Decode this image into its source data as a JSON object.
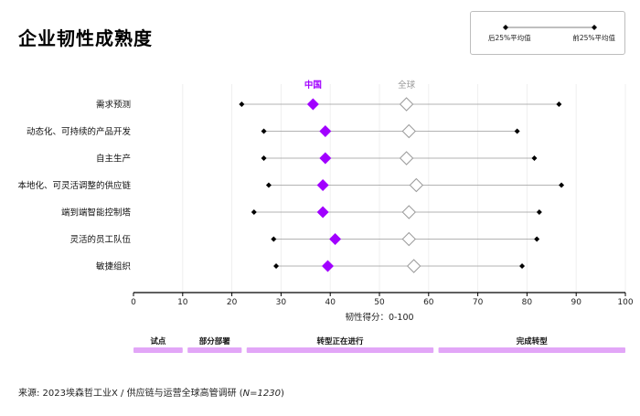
{
  "title": "企业韧性成熟度",
  "legend": {
    "left_label": "后25%平均值",
    "right_label": "前25%平均值"
  },
  "source": {
    "prefix": "来源: 2023埃森哲工业X / 供应链与运营全球高管调研 (",
    "n": "N=1230",
    "suffix": ")"
  },
  "colors": {
    "china": "#a100ff",
    "global": "#ffffff",
    "global_stroke": "#9a9a9a",
    "band": "#e2a6f7",
    "line": "#9a9a9a",
    "dot": "#000000"
  },
  "chart_data": {
    "type": "dot-range",
    "xlabel": "韧性得分：0-100",
    "xlim": [
      0,
      100
    ],
    "xticks": [
      0,
      10,
      20,
      30,
      40,
      50,
      60,
      70,
      80,
      90,
      100
    ],
    "grid": true,
    "series_labels": {
      "china": "中国",
      "global": "全球"
    },
    "categories": [
      "需求预测",
      "动态化、可持续的产品开发",
      "自主生产",
      "本地化、可灵活调整的供应链",
      "端到端智能控制塔",
      "灵活的员工队伍",
      "敏捷组织"
    ],
    "bottom25": [
      22,
      26.5,
      26.5,
      27.5,
      24.5,
      28.5,
      29
    ],
    "top25": [
      86.5,
      78,
      81.5,
      87,
      82.5,
      82,
      79
    ],
    "china": [
      36.5,
      39,
      39,
      38.5,
      38.5,
      41,
      39.5
    ],
    "global": [
      55.5,
      56,
      55.5,
      57.5,
      56,
      56,
      57
    ],
    "stages": [
      {
        "label": "试点",
        "from": 0,
        "to": 10
      },
      {
        "label": "部分部署",
        "from": 11,
        "to": 22
      },
      {
        "label": "转型正在进行",
        "from": 23,
        "to": 61
      },
      {
        "label": "完成转型",
        "from": 62,
        "to": 100
      }
    ]
  }
}
